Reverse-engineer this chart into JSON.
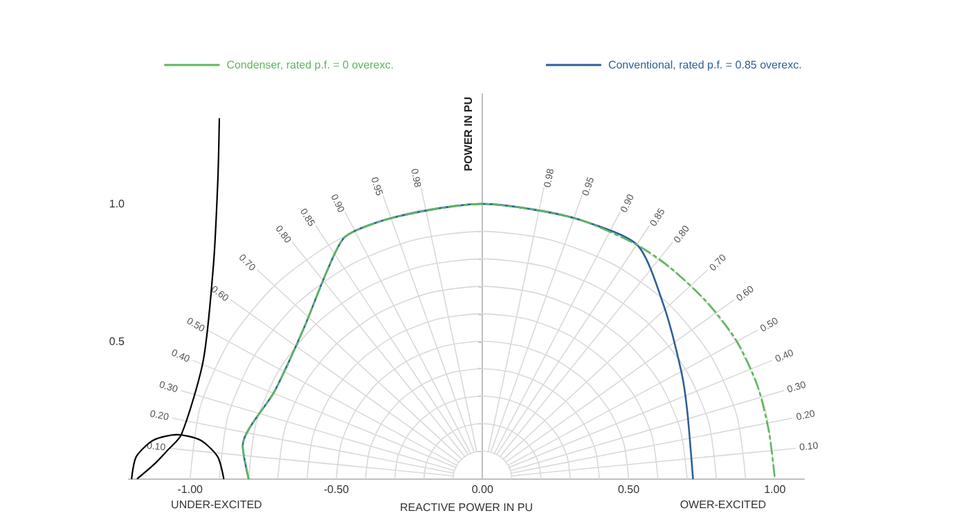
{
  "chart_data": {
    "type": "line",
    "xlabel": "REACTIVE POWER IN PU",
    "ylabel": "POWER IN PU",
    "xlim": [
      -1.21,
      1.1
    ],
    "ylim": [
      0,
      1.4
    ],
    "xticks": [
      {
        "value": -1,
        "label": "-1.00"
      },
      {
        "value": -0.5,
        "label": "-0.50"
      },
      {
        "value": 0,
        "label": "0.00"
      },
      {
        "value": 0.5,
        "label": "0.50"
      },
      {
        "value": 1,
        "label": "1.00"
      }
    ],
    "yticks": [
      {
        "value": 0.1,
        "label": null
      },
      {
        "value": 0.2,
        "label": null
      },
      {
        "value": 0.3,
        "label": null
      },
      {
        "value": 0.4,
        "label": null
      },
      {
        "value": 0.5,
        "label": "0.5"
      },
      {
        "value": 0.6,
        "label": null
      },
      {
        "value": 0.7,
        "label": null
      },
      {
        "value": 0.8,
        "label": null
      },
      {
        "value": 0.9,
        "label": null
      },
      {
        "value": 1,
        "label": "1.0"
      }
    ],
    "legend": "top",
    "marker": "none",
    "series": [
      {
        "name": "Condenser, rated p.f. = 0 overexc.",
        "color": "#5cb85c",
        "line_style": "dashed",
        "x": [
          -0.8,
          -0.82,
          -0.71,
          -0.61,
          -0.53,
          -0.47,
          -0.34,
          -0.17,
          0,
          0.17,
          0.34,
          0.53,
          0.64,
          0.77,
          0.87,
          0.94,
          0.98,
          1
        ],
        "values": [
          0,
          0.12,
          0.32,
          0.55,
          0.76,
          0.88,
          0.94,
          0.98,
          1,
          0.98,
          0.94,
          0.85,
          0.77,
          0.64,
          0.5,
          0.34,
          0.17,
          0
        ]
      },
      {
        "name": "Conventional, rated p.f. = 0.85 overexc.",
        "color": "#2e5f9a",
        "x": [
          -0.8,
          -0.82,
          -0.71,
          -0.61,
          -0.53,
          -0.47,
          -0.34,
          -0.17,
          0,
          0.17,
          0.34,
          0.53,
          0.62,
          0.68,
          0.7,
          0.72
        ],
        "values": [
          0,
          0.12,
          0.32,
          0.55,
          0.76,
          0.88,
          0.94,
          0.98,
          1,
          0.98,
          0.94,
          0.85,
          0.63,
          0.39,
          0.25,
          0
        ]
      },
      {
        "color": "#000000",
        "x": [
          -1.18,
          -1.12,
          -1.08,
          -1.03,
          -0.955,
          -0.92,
          -0.905,
          -0.9
        ],
        "values": [
          0,
          0.055,
          0.1,
          0.16,
          0.43,
          0.78,
          1.09,
          1.31
        ]
      },
      {
        "color": "#000000",
        "x": [
          -0.885,
          -0.906,
          -0.965,
          -1.045,
          -1.125,
          -1.184,
          -1.2
        ],
        "values": [
          0,
          0.08,
          0.14,
          0.16,
          0.14,
          0.08,
          0
        ]
      },
      {
        "name": "0.10",
        "color": "#d9d9d9",
        "x": [
          -0.1,
          -1.07
        ],
        "values": [
          0.01,
          0.11
        ]
      },
      {
        "name": "0.20",
        "color": "#d9d9d9",
        "x": [
          -0.1,
          -1.06
        ],
        "values": [
          0.02,
          0.22
        ]
      },
      {
        "name": "0.30",
        "color": "#d9d9d9",
        "x": [
          -0.1,
          -1.03
        ],
        "values": [
          0.03,
          0.32
        ]
      },
      {
        "name": "0.40",
        "color": "#d9d9d9",
        "x": [
          -0.09,
          -0.99
        ],
        "values": [
          0.04,
          0.43
        ]
      },
      {
        "name": "0.50",
        "color": "#d9d9d9",
        "x": [
          -0.09,
          -0.94
        ],
        "values": [
          0.05,
          0.54
        ]
      },
      {
        "name": "0.60",
        "color": "#d9d9d9",
        "x": [
          -0.08,
          -0.86
        ],
        "values": [
          0.06,
          0.65
        ]
      },
      {
        "name": "0.70",
        "color": "#d9d9d9",
        "x": [
          -0.07,
          -0.77
        ],
        "values": [
          0.07,
          0.76
        ]
      },
      {
        "name": "0.80",
        "color": "#d9d9d9",
        "x": [
          -0.06,
          -0.65
        ],
        "values": [
          0.08,
          0.86
        ]
      },
      {
        "name": "0.85",
        "color": "#d9d9d9",
        "x": [
          -0.05,
          -0.57
        ],
        "values": [
          0.09,
          0.92
        ]
      },
      {
        "name": "0.90",
        "color": "#d9d9d9",
        "x": [
          -0.04,
          -0.47
        ],
        "values": [
          0.09,
          0.97
        ]
      },
      {
        "name": "0.95",
        "color": "#d9d9d9",
        "x": [
          -0.03,
          -0.34
        ],
        "values": [
          0.1,
          1.03
        ]
      },
      {
        "name": "0.98",
        "color": "#d9d9d9",
        "x": [
          -0.02,
          -0.21
        ],
        "values": [
          0.1,
          1.06
        ]
      },
      {
        "name": "0.10",
        "color": "#d9d9d9",
        "x": [
          0.1,
          1.07
        ],
        "values": [
          0.01,
          0.11
        ]
      },
      {
        "name": "0.20",
        "color": "#d9d9d9",
        "x": [
          0.1,
          1.06
        ],
        "values": [
          0.02,
          0.22
        ]
      },
      {
        "name": "0.30",
        "color": "#d9d9d9",
        "x": [
          0.1,
          1.03
        ],
        "values": [
          0.03,
          0.32
        ]
      },
      {
        "name": "0.40",
        "color": "#d9d9d9",
        "x": [
          0.09,
          0.99
        ],
        "values": [
          0.04,
          0.43
        ]
      },
      {
        "name": "0.50",
        "color": "#d9d9d9",
        "x": [
          0.09,
          0.94
        ],
        "values": [
          0.05,
          0.54
        ]
      },
      {
        "name": "0.60",
        "color": "#d9d9d9",
        "x": [
          0.08,
          0.86
        ],
        "values": [
          0.06,
          0.65
        ]
      },
      {
        "name": "0.70",
        "color": "#d9d9d9",
        "x": [
          0.07,
          0.77
        ],
        "values": [
          0.07,
          0.76
        ]
      },
      {
        "name": "0.80",
        "color": "#d9d9d9",
        "x": [
          0.06,
          0.65
        ],
        "values": [
          0.08,
          0.86
        ]
      },
      {
        "name": "0.85",
        "color": "#d9d9d9",
        "x": [
          0.05,
          0.57
        ],
        "values": [
          0.09,
          0.92
        ]
      },
      {
        "name": "0.90",
        "color": "#d9d9d9",
        "x": [
          0.04,
          0.47
        ],
        "values": [
          0.09,
          0.97
        ]
      },
      {
        "name": "0.95",
        "color": "#d9d9d9",
        "x": [
          0.03,
          0.34
        ],
        "values": [
          0.1,
          1.03
        ]
      },
      {
        "name": "0.98",
        "color": "#d9d9d9",
        "x": [
          0.02,
          0.21
        ],
        "values": [
          0.1,
          1.06
        ]
      },
      {
        "color": "#d9d9d9",
        "x": [
          0.1,
          0.097,
          0.087,
          0.071,
          0.05,
          0.026,
          0,
          -0.026,
          -0.05,
          -0.071,
          -0.087,
          -0.097,
          -0.1
        ],
        "values": [
          0,
          0.026,
          0.05,
          0.071,
          0.087,
          0.097,
          0.1,
          0.097,
          0.087,
          0.071,
          0.05,
          0.026,
          0
        ]
      },
      {
        "color": "#d9d9d9",
        "x": [
          0.2,
          0.193,
          0.173,
          0.141,
          0.1,
          0.052,
          0,
          -0.052,
          -0.1,
          -0.141,
          -0.173,
          -0.193,
          -0.2
        ],
        "values": [
          0,
          0.052,
          0.1,
          0.141,
          0.173,
          0.193,
          0.2,
          0.193,
          0.173,
          0.141,
          0.1,
          0.052,
          0
        ]
      },
      {
        "color": "#d9d9d9",
        "x": [
          0.3,
          0.29,
          0.26,
          0.212,
          0.15,
          0.078,
          0,
          -0.078,
          -0.15,
          -0.212,
          -0.26,
          -0.29,
          -0.3
        ],
        "values": [
          0,
          0.078,
          0.15,
          0.212,
          0.26,
          0.29,
          0.3,
          0.29,
          0.26,
          0.212,
          0.15,
          0.078,
          0
        ]
      },
      {
        "color": "#d9d9d9",
        "x": [
          0.4,
          0.386,
          0.346,
          0.283,
          0.2,
          0.104,
          0,
          -0.104,
          -0.2,
          -0.283,
          -0.346,
          -0.386,
          -0.4
        ],
        "values": [
          0,
          0.104,
          0.2,
          0.283,
          0.346,
          0.386,
          0.4,
          0.386,
          0.346,
          0.283,
          0.2,
          0.104,
          0
        ]
      },
      {
        "color": "#d9d9d9",
        "x": [
          0.5,
          0.483,
          0.433,
          0.354,
          0.25,
          0.129,
          0,
          -0.129,
          -0.25,
          -0.354,
          -0.433,
          -0.483,
          -0.5
        ],
        "values": [
          0,
          0.129,
          0.25,
          0.354,
          0.433,
          0.483,
          0.5,
          0.483,
          0.433,
          0.354,
          0.25,
          0.129,
          0
        ]
      },
      {
        "color": "#d9d9d9",
        "x": [
          0.6,
          0.58,
          0.52,
          0.424,
          0.3,
          0.155,
          0,
          -0.155,
          -0.3,
          -0.424,
          -0.52,
          -0.58,
          -0.6
        ],
        "values": [
          0,
          0.155,
          0.3,
          0.424,
          0.52,
          0.58,
          0.6,
          0.58,
          0.52,
          0.424,
          0.3,
          0.155,
          0
        ]
      },
      {
        "color": "#d9d9d9",
        "x": [
          0.7,
          0.676,
          0.606,
          0.495,
          0.35,
          0.181,
          0,
          -0.181,
          -0.35,
          -0.495,
          -0.606,
          -0.676,
          -0.7
        ],
        "values": [
          0,
          0.181,
          0.35,
          0.495,
          0.606,
          0.676,
          0.7,
          0.676,
          0.606,
          0.495,
          0.35,
          0.181,
          0
        ]
      },
      {
        "color": "#d9d9d9",
        "x": [
          0.8,
          0.773,
          0.693,
          0.566,
          0.4,
          0.207,
          0,
          -0.207,
          -0.4,
          -0.566,
          -0.693,
          -0.773,
          -0.8
        ],
        "values": [
          0,
          0.207,
          0.4,
          0.566,
          0.693,
          0.773,
          0.8,
          0.773,
          0.693,
          0.566,
          0.4,
          0.207,
          0
        ]
      },
      {
        "color": "#d9d9d9",
        "x": [
          0.9,
          0.869,
          0.779,
          0.636,
          0.45,
          0.233,
          0,
          -0.233,
          -0.45,
          -0.636,
          -0.779,
          -0.869,
          -0.9
        ],
        "values": [
          0,
          0.233,
          0.45,
          0.636,
          0.779,
          0.869,
          0.9,
          0.869,
          0.779,
          0.636,
          0.45,
          0.233,
          0
        ]
      },
      {
        "color": "#d9d9d9",
        "x": [
          1,
          0.966,
          0.866,
          0.707,
          0.5,
          0.259,
          0,
          -0.259,
          -0.5,
          -0.707,
          -0.866,
          -0.966,
          -1
        ],
        "values": [
          0,
          0.259,
          0.5,
          0.707,
          0.866,
          0.966,
          1,
          0.966,
          0.866,
          0.707,
          0.5,
          0.259,
          0
        ]
      }
    ],
    "annotations": [
      "UNDER-EXCITED",
      "OWER-EXCITED"
    ]
  }
}
